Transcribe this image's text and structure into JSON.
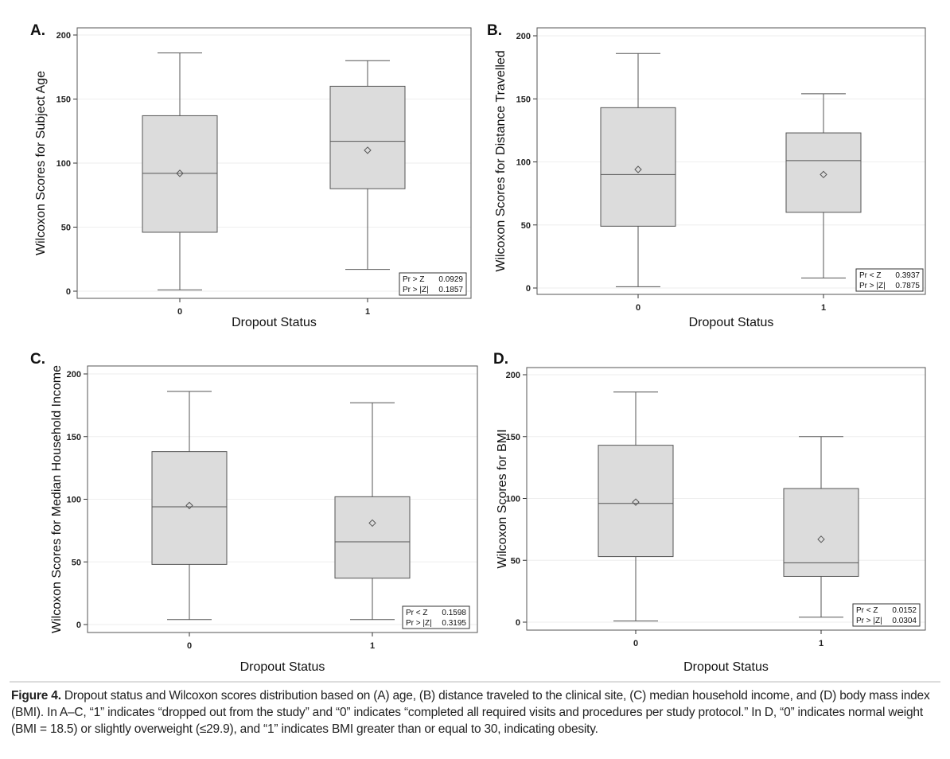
{
  "chart_data": [
    {
      "panel": "A.",
      "type": "box",
      "xlabel": "Dropout Status",
      "ylabel": "Wilcoxon Scores for Subject Age",
      "ylim": [
        0,
        200
      ],
      "yticks": [
        0,
        50,
        100,
        150,
        200
      ],
      "categories": [
        "0",
        "1"
      ],
      "boxes": [
        {
          "min": 1,
          "q1": 46,
          "median": 92,
          "q3": 137,
          "max": 186,
          "mean": 92
        },
        {
          "min": 17,
          "q1": 80,
          "median": 117,
          "q3": 160,
          "max": 180,
          "mean": 110
        }
      ],
      "stats": [
        [
          "Pr > Z",
          "0.0929"
        ],
        [
          "Pr > |Z|",
          "0.1857"
        ]
      ]
    },
    {
      "panel": "B.",
      "type": "box",
      "xlabel": "Dropout Status",
      "ylabel": "Wilcoxon Scores for Distance Travelled",
      "ylim": [
        0,
        200
      ],
      "yticks": [
        0,
        50,
        100,
        150,
        200
      ],
      "categories": [
        "0",
        "1"
      ],
      "boxes": [
        {
          "min": 1,
          "q1": 49,
          "median": 90,
          "q3": 143,
          "max": 186,
          "mean": 94
        },
        {
          "min": 8,
          "q1": 60,
          "median": 101,
          "q3": 123,
          "max": 154,
          "mean": 90
        }
      ],
      "stats": [
        [
          "Pr < Z",
          "0.3937"
        ],
        [
          "Pr > |Z|",
          "0.7875"
        ]
      ]
    },
    {
      "panel": "C.",
      "type": "box",
      "xlabel": "Dropout Status",
      "ylabel": "Wilcoxon Scores  for Median Household Income",
      "ylim": [
        0,
        200
      ],
      "yticks": [
        0,
        50,
        100,
        150,
        200
      ],
      "categories": [
        "0",
        "1"
      ],
      "boxes": [
        {
          "min": 4,
          "q1": 48,
          "median": 94,
          "q3": 138,
          "max": 186,
          "mean": 95
        },
        {
          "min": 4,
          "q1": 37,
          "median": 66,
          "q3": 102,
          "max": 177,
          "mean": 81
        }
      ],
      "stats": [
        [
          "Pr < Z",
          "0.1598"
        ],
        [
          "Pr > |Z|",
          "0.3195"
        ]
      ]
    },
    {
      "panel": "D.",
      "type": "box",
      "xlabel": "Dropout Status",
      "ylabel": "Wilcoxon Scores for BMI",
      "ylim": [
        0,
        200
      ],
      "yticks": [
        0,
        50,
        100,
        150,
        200
      ],
      "categories": [
        "0",
        "1"
      ],
      "boxes": [
        {
          "min": 1,
          "q1": 53,
          "median": 96,
          "q3": 143,
          "max": 186,
          "mean": 97
        },
        {
          "min": 4,
          "q1": 37,
          "median": 48,
          "q3": 108,
          "max": 150,
          "mean": 67
        }
      ],
      "stats": [
        [
          "Pr < Z",
          "0.0152"
        ],
        [
          "Pr > |Z|",
          "0.0304"
        ]
      ]
    }
  ],
  "caption": {
    "label": "Figure 4.",
    "text": " Dropout status and Wilcoxon scores distribution based on (A) age, (B) distance traveled to the clinical site, (C) median household income, and (D) body mass index (BMI). In A–C, “1” indicates “dropped out from the study” and “0” indicates “completed all required visits and procedures per study protocol.” In D, “0” indicates normal weight (BMI = 18.5) or slightly overweight (≤29.9), and “1” indicates BMI greater than or equal to 30, indicating obesity."
  },
  "colors": {
    "box_fill": "#dcdcdc",
    "line": "#555555",
    "grid": "#eeeeee"
  }
}
